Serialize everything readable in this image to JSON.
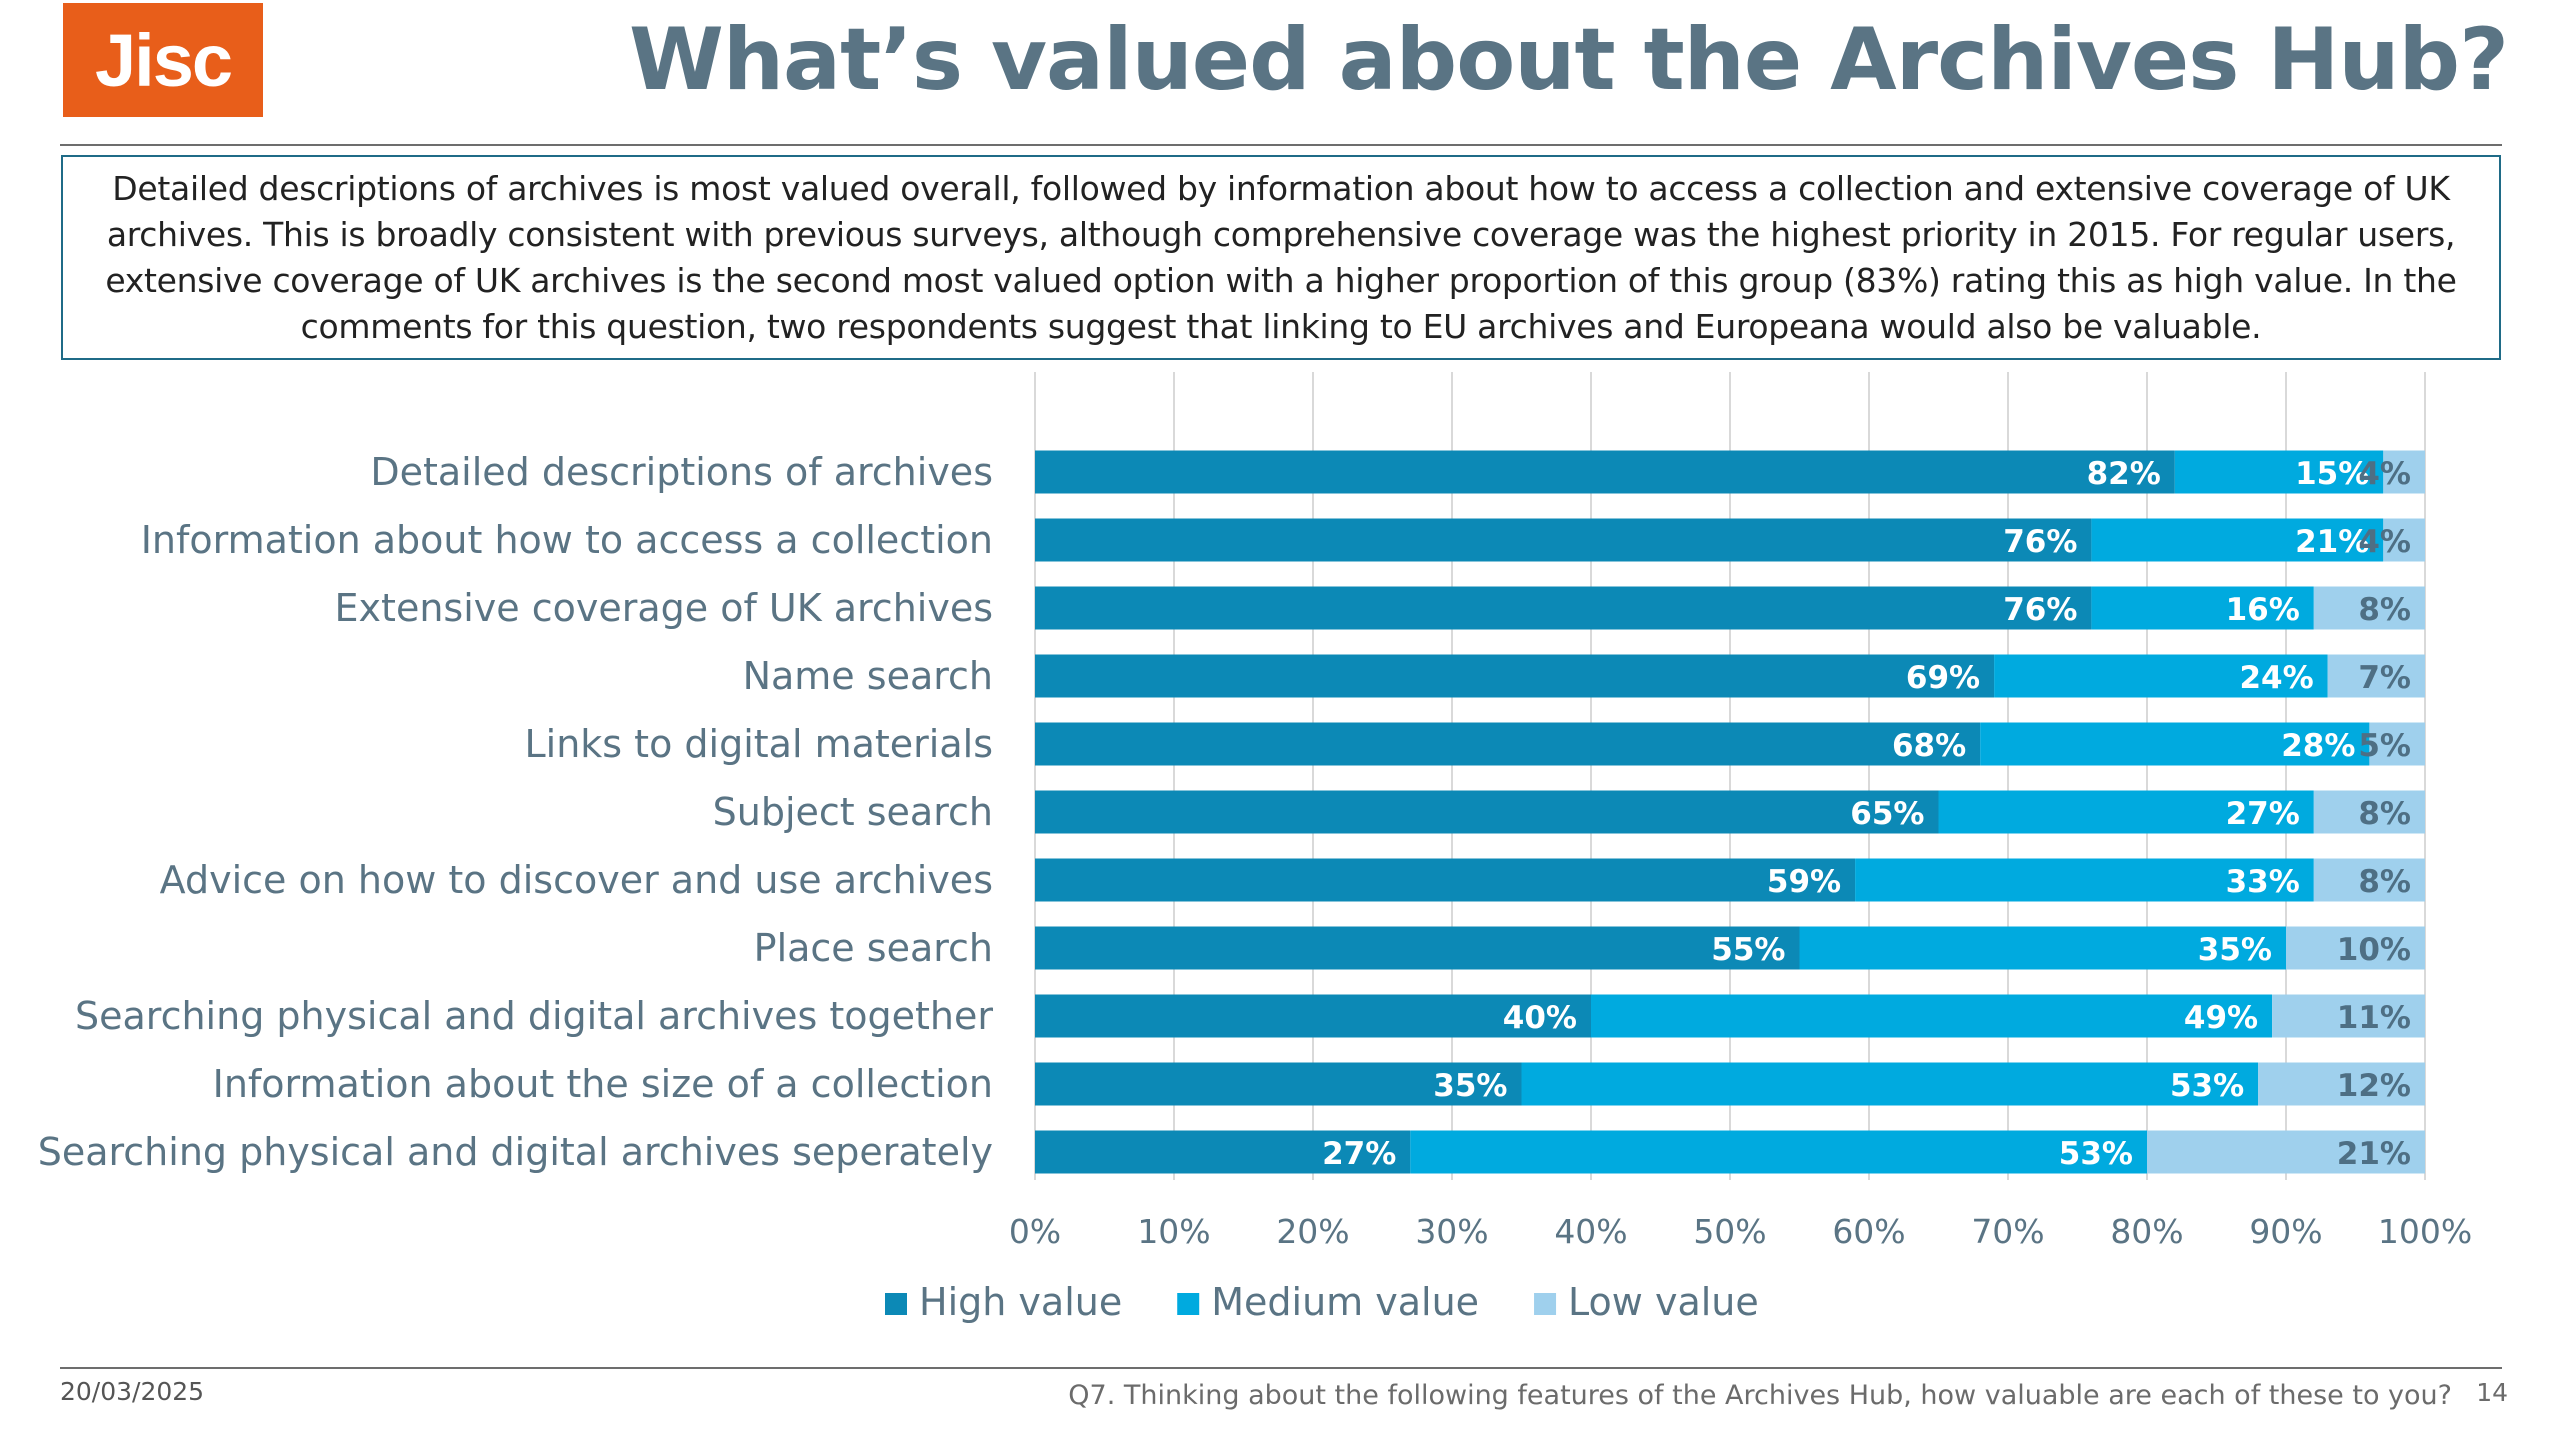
{
  "brand": {
    "logo_text": "Jisc",
    "logo_color": "#e85e1a"
  },
  "header": {
    "title": "What’s valued about the Archives Hub?"
  },
  "summary": {
    "text": "Detailed descriptions of archives is most valued overall, followed by information about how to access a collection and extensive coverage of UK archives.   This is broadly consistent with previous surveys, although comprehensive coverage was the highest priority in 2015.  For regular users, extensive coverage of UK archives is the second most valued option with a higher proportion of this group (83%) rating this as high value.  In the comments for this question, two respondents suggest that linking to EU archives and Europeana would also be valuable."
  },
  "chart_data": {
    "type": "bar",
    "orientation": "horizontal",
    "stacked": true,
    "categories": [
      "Detailed descriptions of archives",
      "Information about how to access a collection",
      "Extensive coverage of UK archives",
      "Name search",
      "Links to digital materials",
      "Subject search",
      "Advice on how to discover and use archives",
      "Place search",
      "Searching physical and digital archives together",
      "Information about the size of a collection",
      "Searching physical and digital archives seperately"
    ],
    "series": [
      {
        "name": "High value",
        "color": "#0c89b6",
        "values": [
          82,
          76,
          76,
          69,
          68,
          65,
          59,
          55,
          40,
          35,
          27
        ],
        "labels": [
          "82%",
          "76%",
          "76%",
          "69%",
          "68%",
          "65%",
          "59%",
          "55%",
          "40%",
          "35%",
          "27%"
        ]
      },
      {
        "name": "Medium value",
        "color": "#00aadf",
        "values": [
          15,
          21,
          16,
          24,
          28,
          27,
          33,
          35,
          49,
          53,
          53
        ],
        "labels": [
          "15%",
          "21%",
          "16%",
          "24%",
          "28%",
          "27%",
          "33%",
          "35%",
          "49%",
          "53%",
          "53%"
        ]
      },
      {
        "name": "Low value",
        "color": "#9fd0ed",
        "values": [
          4,
          4,
          8,
          7,
          5,
          8,
          8,
          10,
          11,
          12,
          21
        ],
        "labels": [
          "4%",
          "4%",
          "8%",
          "7%",
          "5%",
          "8%",
          "8%",
          "10%",
          "11%",
          "12%",
          "21%"
        ]
      }
    ],
    "xlim": [
      0,
      100
    ],
    "xticks": [
      "0%",
      "10%",
      "20%",
      "30%",
      "40%",
      "50%",
      "60%",
      "70%",
      "80%",
      "90%",
      "100%"
    ],
    "grid": true,
    "legend": "bottom"
  },
  "footer": {
    "date": "20/03/2025",
    "question": "Q7. Thinking about the following features of the Archives Hub, how valuable are each of these to you?",
    "page": "14"
  }
}
